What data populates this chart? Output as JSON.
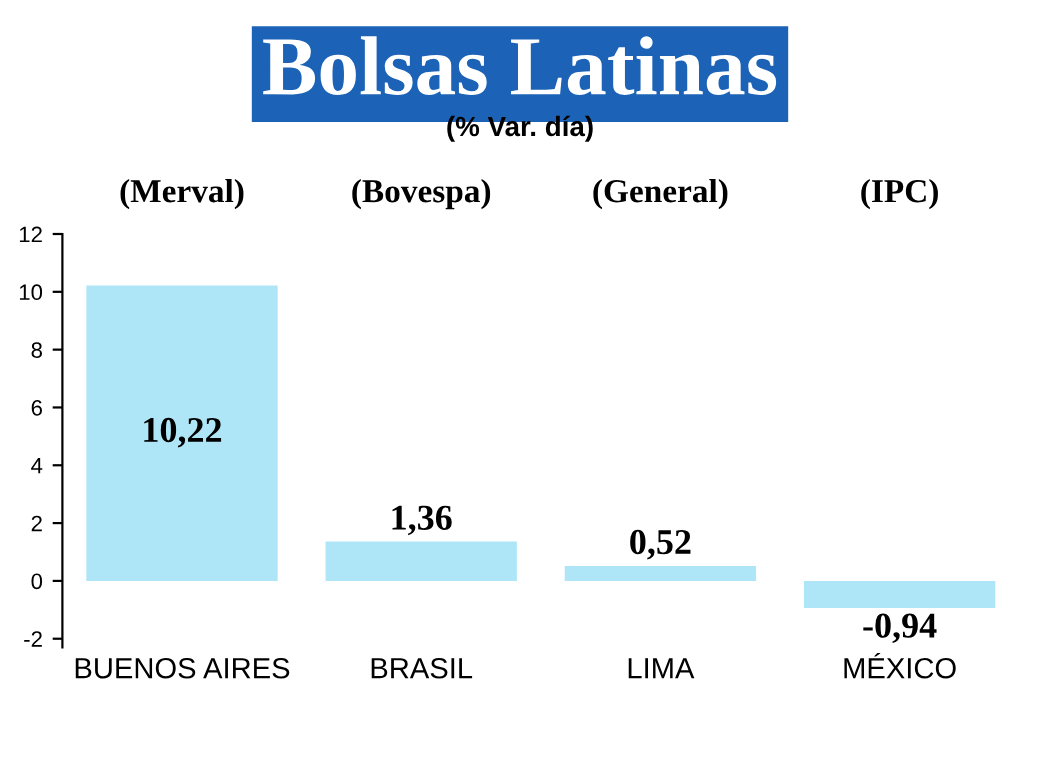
{
  "chart_data": {
    "type": "bar",
    "title": "Bolsas Latinas",
    "subtitle": "(% Var. día)",
    "categories": [
      "BUENOS AIRES",
      "BRASIL",
      "LIMA",
      "MÉXICO"
    ],
    "values": [
      10.22,
      1.36,
      0.52,
      -0.94
    ],
    "color": "#aee6f8",
    "value_labels": [
      "10,22",
      "1,36",
      "0,52",
      "-0,94"
    ],
    "annotations": [
      "(Merval)",
      "(Bovespa)",
      "(General)",
      "(IPC)"
    ],
    "ylim": [
      -2.3,
      12
    ],
    "yticks": [
      -2,
      0,
      2,
      4,
      6,
      8,
      10,
      12
    ],
    "grid": false,
    "legend": false
  }
}
